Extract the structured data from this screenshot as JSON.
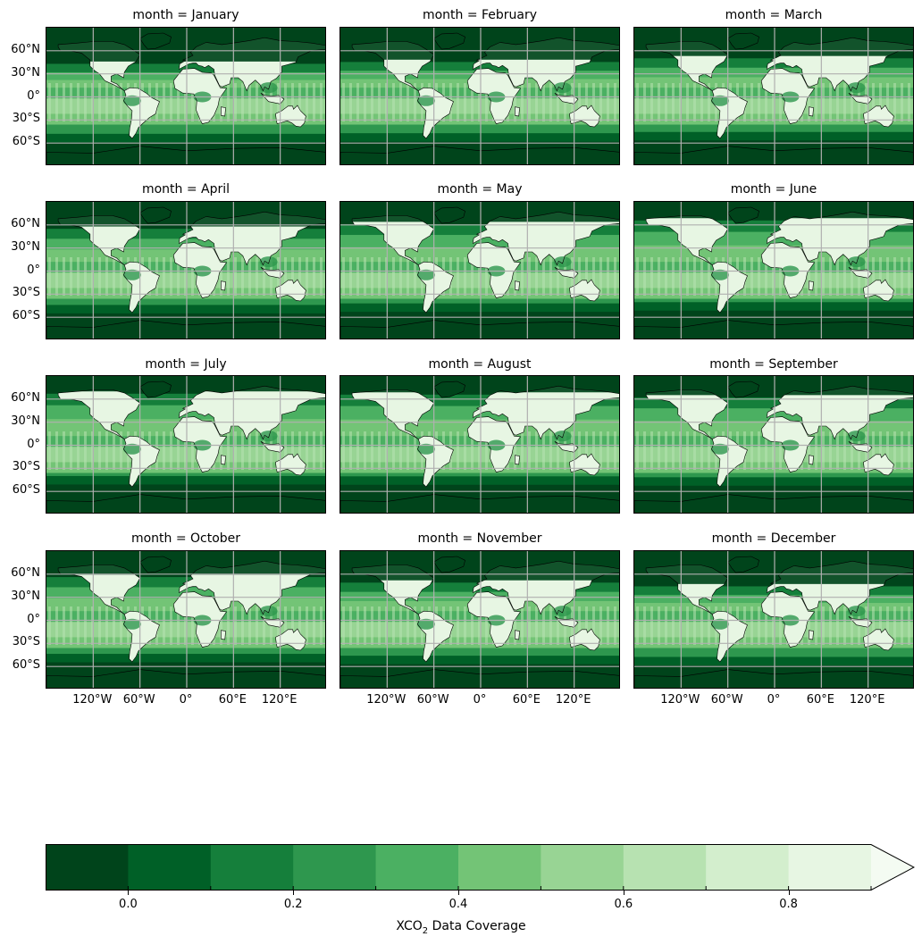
{
  "figure": {
    "colorbar_label_main": "XCO",
    "colorbar_label_sub": "2",
    "colorbar_label_rest": " Data Coverage",
    "colormap": "Greens_r",
    "extend": "max",
    "levels": [
      -0.1,
      0.0,
      0.1,
      0.2,
      0.3,
      0.4,
      0.5,
      0.6,
      0.7,
      0.8,
      0.9
    ],
    "colors": [
      "#00441b",
      "#006027",
      "#157f3b",
      "#2e974e",
      "#4bb062",
      "#73c476",
      "#98d494",
      "#b7e2b1",
      "#d3eecd",
      "#e7f6e3",
      "#f4fbf2"
    ],
    "colorbar_ticks": [
      "0.0",
      "0.2",
      "0.4",
      "0.6",
      "0.8"
    ],
    "colorbar_tick_values": [
      0.0,
      0.2,
      0.4,
      0.6,
      0.8
    ]
  },
  "lat_ticks": [
    "60°N",
    "30°N",
    "0°",
    "30°S",
    "60°S"
  ],
  "lon_ticks": [
    "120°W",
    "60°W",
    "0°",
    "60°E",
    "120°E"
  ],
  "panels": [
    {
      "title": "month = January",
      "month": "January"
    },
    {
      "title": "month = February",
      "month": "February"
    },
    {
      "title": "month = March",
      "month": "March"
    },
    {
      "title": "month = April",
      "month": "April"
    },
    {
      "title": "month = May",
      "month": "May"
    },
    {
      "title": "month = June",
      "month": "June"
    },
    {
      "title": "month = July",
      "month": "July"
    },
    {
      "title": "month = August",
      "month": "August"
    },
    {
      "title": "month = September",
      "month": "September"
    },
    {
      "title": "month = October",
      "month": "October"
    },
    {
      "title": "month = November",
      "month": "November"
    },
    {
      "title": "month = December",
      "month": "December"
    }
  ],
  "chart_data": {
    "type": "heatmap",
    "xlabel": "",
    "ylabel": "",
    "colorbar_label": "XCO2 Data Coverage",
    "x_ticks": [
      "120°W",
      "60°W",
      "0°",
      "60°E",
      "120°E"
    ],
    "y_ticks": [
      "60°N",
      "30°N",
      "0°",
      "30°S",
      "60°S"
    ],
    "colorbar_range": [
      -0.1,
      0.9
    ],
    "grid": true,
    "facets": [
      "January",
      "February",
      "March",
      "April",
      "May",
      "June",
      "July",
      "August",
      "September",
      "October",
      "November",
      "December"
    ]
  }
}
